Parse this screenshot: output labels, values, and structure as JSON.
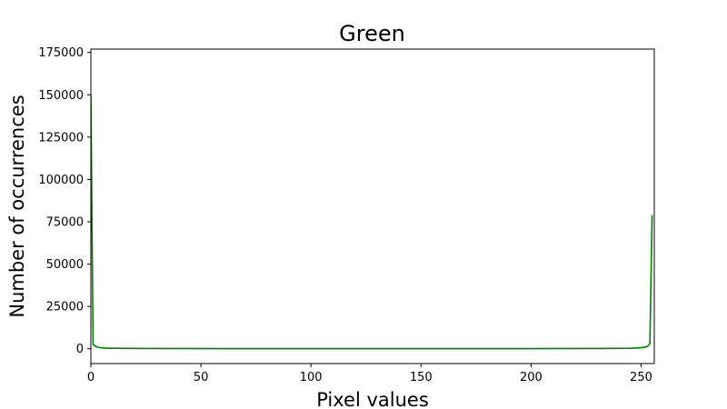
{
  "chart_data": {
    "type": "line",
    "title": "Green",
    "xlabel": "Pixel values",
    "ylabel": "Number of occurrences",
    "xlim": [
      0,
      256
    ],
    "ylim": [
      -8750,
      177000
    ],
    "xticks": [
      0,
      50,
      100,
      150,
      200,
      250
    ],
    "yticks": [
      0,
      25000,
      50000,
      75000,
      100000,
      125000,
      150000,
      175000
    ],
    "grid": false,
    "series": [
      {
        "color": "#008000",
        "points": [
          [
            0,
            150000
          ],
          [
            1,
            2500
          ],
          [
            2,
            1500
          ],
          [
            3,
            900
          ],
          [
            5,
            500
          ],
          [
            8,
            300
          ],
          [
            15,
            200
          ],
          [
            30,
            120
          ],
          [
            60,
            80
          ],
          [
            100,
            60
          ],
          [
            150,
            60
          ],
          [
            200,
            80
          ],
          [
            230,
            150
          ],
          [
            245,
            300
          ],
          [
            250,
            600
          ],
          [
            252,
            1000
          ],
          [
            253,
            1500
          ],
          [
            254,
            3000
          ],
          [
            255,
            79000
          ]
        ]
      }
    ]
  }
}
